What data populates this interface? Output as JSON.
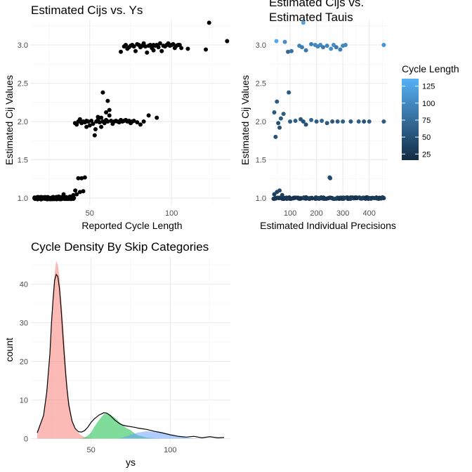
{
  "colors": {
    "grid_major": "#ebebeb",
    "grid_minor": "#f5f5f5",
    "point_black": "#000000",
    "density_line": "#000000",
    "fill_pink": "#f8766d",
    "fill_green": "#00ba38",
    "fill_blue": "#619cff",
    "gradient_low": "#132b43",
    "gradient_high": "#56b1f7"
  },
  "chart_data": [
    {
      "type": "scatter",
      "title": "Estimated Cijs vs. Ys",
      "xlabel": "Reported Cycle Length",
      "ylabel": "Estimated Cij Values",
      "xlim": [
        14,
        136
      ],
      "ylim": [
        0.9,
        3.33
      ],
      "xticks": [
        50,
        100
      ],
      "xtick_labels": [
        "50",
        "100"
      ],
      "yticks": [
        1.0,
        1.5,
        2.0,
        2.5,
        3.0
      ],
      "ytick_labels": [
        "1.0",
        "1.5",
        "2.0",
        "2.5",
        "3.0"
      ],
      "grid": true,
      "clusters": [
        {
          "x_range": [
            16,
            41
          ],
          "y": 1.0,
          "spread": 0.015,
          "n": 120
        },
        {
          "x_range": [
            41,
            42
          ],
          "y": 1.1,
          "spread": 0.0,
          "n": 1
        }
      ],
      "points": [
        [
          38.0,
          1.02
        ],
        [
          40.0,
          1.04
        ],
        [
          42.0,
          1.05
        ],
        [
          44.0,
          1.08
        ],
        [
          46.0,
          1.09
        ],
        [
          47.0,
          1.27
        ],
        [
          45.0,
          1.26
        ],
        [
          43.0,
          1.26
        ],
        [
          31.0,
          1.02
        ],
        [
          34.0,
          1.05
        ],
        [
          41.0,
          1.98
        ],
        [
          42.0,
          1.96
        ],
        [
          43.0,
          2.0
        ],
        [
          44.0,
          2.03
        ],
        [
          45.0,
          1.98
        ],
        [
          46.0,
          2.0
        ],
        [
          47.0,
          1.99
        ],
        [
          48.0,
          2.01
        ],
        [
          49.0,
          2.0
        ],
        [
          50.0,
          1.95
        ],
        [
          51.0,
          2.01
        ],
        [
          52.0,
          1.97
        ],
        [
          53.0,
          1.82
        ],
        [
          53.5,
          1.9
        ],
        [
          54.0,
          2.0
        ],
        [
          55.0,
          2.02
        ],
        [
          56.0,
          1.99
        ],
        [
          57.0,
          2.05
        ],
        [
          58.0,
          2.0
        ],
        [
          59.0,
          1.98
        ],
        [
          60.0,
          2.02
        ],
        [
          61.0,
          2.0
        ],
        [
          62.0,
          2.08
        ],
        [
          63.0,
          2.01
        ],
        [
          64.0,
          1.97
        ],
        [
          65.0,
          2.0
        ],
        [
          66.0,
          2.01
        ],
        [
          67.0,
          2.0
        ],
        [
          68.0,
          1.99
        ],
        [
          69.0,
          2.02
        ],
        [
          70.0,
          2.0
        ],
        [
          71.0,
          2.01
        ],
        [
          72.0,
          2.02
        ],
        [
          73.0,
          2.0
        ],
        [
          74.0,
          2.01
        ],
        [
          75.0,
          1.98
        ],
        [
          76.0,
          2.0
        ],
        [
          77.0,
          2.01
        ],
        [
          79.0,
          1.99
        ],
        [
          81.0,
          1.96
        ],
        [
          83.0,
          2.0
        ],
        [
          86.0,
          2.08
        ],
        [
          91.0,
          2.05
        ],
        [
          58.0,
          2.38
        ],
        [
          61.0,
          2.27
        ],
        [
          62.0,
          2.15
        ],
        [
          60.0,
          2.12
        ],
        [
          55.0,
          2.06
        ],
        [
          57.0,
          1.93
        ],
        [
          48.0,
          1.93
        ],
        [
          69.0,
          2.91
        ],
        [
          71.0,
          2.98
        ],
        [
          72.0,
          3.0
        ],
        [
          73.0,
          2.95
        ],
        [
          74.0,
          2.97
        ],
        [
          75.0,
          2.99
        ],
        [
          76.0,
          3.0
        ],
        [
          77.0,
          2.98
        ],
        [
          78.0,
          2.92
        ],
        [
          79.0,
          3.01
        ],
        [
          80.0,
          3.0
        ],
        [
          81.0,
          2.97
        ],
        [
          82.0,
          2.99
        ],
        [
          83.0,
          3.02
        ],
        [
          84.0,
          2.98
        ],
        [
          85.0,
          2.9
        ],
        [
          86.0,
          2.99
        ],
        [
          87.0,
          3.0
        ],
        [
          88.0,
          2.96
        ],
        [
          89.0,
          2.93
        ],
        [
          90.0,
          2.99
        ],
        [
          91.0,
          3.0
        ],
        [
          92.0,
          2.97
        ],
        [
          93.0,
          3.02
        ],
        [
          94.0,
          2.92
        ],
        [
          95.0,
          2.99
        ],
        [
          96.0,
          2.98
        ],
        [
          97.0,
          3.0
        ],
        [
          98.0,
          3.02
        ],
        [
          99.0,
          2.99
        ],
        [
          100.0,
          3.0
        ],
        [
          101.0,
          3.01
        ],
        [
          102.0,
          2.96
        ],
        [
          103.0,
          2.99
        ],
        [
          104.0,
          3.0
        ],
        [
          105.0,
          3.0
        ],
        [
          106.0,
          2.96
        ],
        [
          110.0,
          2.95
        ],
        [
          121.0,
          2.94
        ],
        [
          123.0,
          3.29
        ],
        [
          134.0,
          3.05
        ],
        [
          89.0,
          3.0
        ]
      ]
    },
    {
      "type": "scatter",
      "title": "Estimated Cijs vs.\nEstimated Tauis",
      "title_lines": [
        "Estimated Cijs vs.",
        "Estimated Tauis"
      ],
      "xlabel": "Estimated Individual Precisions",
      "ylabel": "Estimated Cij Values",
      "xlim": [
        20,
        470
      ],
      "ylim": [
        0.9,
        3.33
      ],
      "xticks": [
        100,
        200,
        300,
        400
      ],
      "xtick_labels": [
        "100",
        "200",
        "300",
        "400"
      ],
      "yticks": [
        1.0,
        1.5,
        2.0,
        2.5,
        3.0
      ],
      "ytick_labels": [
        "1.0",
        "1.5",
        "2.0",
        "2.5",
        "3.0"
      ],
      "grid": true,
      "legend": {
        "title": "Cycle Length",
        "placement": "right",
        "ticks": [
          25,
          50,
          75,
          100,
          125
        ],
        "tick_labels": [
          "25",
          "50",
          "75",
          "100",
          "125"
        ],
        "range": [
          16,
          136
        ]
      },
      "points": [
        [
          48,
          3.05,
          130
        ],
        [
          80,
          3.04,
          105
        ],
        [
          150,
          3.29,
          123
        ],
        [
          92,
          2.91,
          69
        ],
        [
          105,
          2.92,
          78
        ],
        [
          135,
          2.99,
          95
        ],
        [
          145,
          2.97,
          90
        ],
        [
          160,
          2.93,
          85
        ],
        [
          180,
          3.01,
          92
        ],
        [
          195,
          3.0,
          100
        ],
        [
          205,
          2.98,
          97
        ],
        [
          215,
          3.0,
          101
        ],
        [
          225,
          2.97,
          88
        ],
        [
          240,
          2.99,
          96
        ],
        [
          255,
          2.95,
          105
        ],
        [
          265,
          3.0,
          102
        ],
        [
          275,
          2.97,
          87
        ],
        [
          290,
          2.94,
          91
        ],
        [
          300,
          2.99,
          98
        ],
        [
          310,
          3.0,
          99
        ],
        [
          455,
          3.0,
          110
        ],
        [
          40,
          2.12,
          55
        ],
        [
          45,
          1.8,
          53
        ],
        [
          50,
          2.26,
          60
        ],
        [
          55,
          1.98,
          48
        ],
        [
          60,
          1.92,
          52
        ],
        [
          65,
          2.04,
          58
        ],
        [
          75,
          2.1,
          62
        ],
        [
          95,
          2.38,
          58
        ],
        [
          100,
          2.0,
          60
        ],
        [
          120,
          2.01,
          65
        ],
        [
          140,
          2.03,
          55
        ],
        [
          150,
          2.0,
          50
        ],
        [
          160,
          1.96,
          52
        ],
        [
          180,
          2.02,
          70
        ],
        [
          200,
          2.0,
          62
        ],
        [
          220,
          2.01,
          66
        ],
        [
          240,
          1.98,
          58
        ],
        [
          260,
          2.0,
          55
        ],
        [
          280,
          2.0,
          60
        ],
        [
          300,
          2.0,
          63
        ],
        [
          330,
          2.0,
          57
        ],
        [
          360,
          2.0,
          64
        ],
        [
          380,
          2.0,
          52
        ],
        [
          400,
          2.0,
          61
        ],
        [
          455,
          2.0,
          59
        ],
        [
          40,
          1.05,
          32
        ],
        [
          50,
          1.08,
          40
        ],
        [
          60,
          1.1,
          44
        ],
        [
          70,
          1.04,
          35
        ],
        [
          80,
          1.0,
          28
        ],
        [
          250,
          1.27,
          46
        ],
        [
          252,
          1.26,
          45
        ],
        [
          455,
          1.0,
          30
        ],
        [
          440,
          1.0,
          27
        ],
        [
          420,
          1.0,
          29
        ]
      ],
      "low_band": {
        "x_range": [
          35,
          460
        ],
        "y": 1.0,
        "spread": 0.01,
        "n": 160,
        "color_value": 28
      }
    },
    {
      "type": "area",
      "title": "Cycle Density By Skip Categories",
      "xlabel": "ys",
      "ylabel": "count",
      "xlim": [
        12,
        138
      ],
      "ylim": [
        -1,
        47
      ],
      "xticks": [
        50,
        100
      ],
      "xtick_labels": [
        "50",
        "100"
      ],
      "yticks": [
        0,
        10,
        20,
        30,
        40
      ],
      "ytick_labels": [
        "0",
        "10",
        "20",
        "30",
        "40"
      ],
      "grid": true,
      "x": [
        16,
        20,
        22,
        24,
        25,
        26,
        27,
        28,
        29,
        30,
        31,
        32,
        33,
        34,
        35,
        36,
        38,
        40,
        42,
        44,
        46,
        48,
        50,
        52,
        55,
        58,
        60,
        62,
        65,
        68,
        70,
        72,
        75,
        78,
        80,
        85,
        90,
        95,
        100,
        105,
        110,
        115,
        120,
        125,
        130,
        134
      ],
      "series": [
        {
          "values": [
            1.5,
            6,
            12,
            22,
            30,
            38,
            43,
            46,
            45,
            42,
            37,
            32,
            26,
            20,
            14,
            10,
            5,
            2.5,
            1.5,
            0.8,
            0.4,
            0.2,
            0.1,
            0.05,
            0,
            0,
            0,
            0,
            0,
            0,
            0,
            0,
            0,
            0,
            0,
            0,
            0,
            0,
            0,
            0,
            0,
            0,
            0,
            0,
            0,
            0
          ]
        },
        {
          "values": [
            0,
            0,
            0,
            0,
            0,
            0,
            0,
            0,
            0,
            0,
            0,
            0,
            0,
            0,
            0,
            0,
            0,
            0,
            0,
            0.1,
            0.3,
            0.8,
            1.6,
            3,
            4.8,
            6.3,
            6.6,
            6.3,
            5.4,
            4.2,
            3.5,
            2.8,
            2.2,
            1.2,
            0.8,
            0.3,
            0.1,
            0,
            0,
            0,
            0,
            0,
            0,
            0,
            0,
            0
          ]
        },
        {
          "values": [
            0,
            0,
            0,
            0,
            0,
            0,
            0,
            0,
            0,
            0,
            0,
            0,
            0,
            0,
            0,
            0,
            0,
            0,
            0,
            0,
            0,
            0,
            0,
            0,
            0,
            0,
            0,
            0,
            0,
            0.1,
            0.3,
            0.6,
            1.0,
            1.4,
            1.6,
            1.9,
            1.8,
            1.5,
            1.0,
            0.6,
            0.3,
            0.1,
            0,
            0,
            0,
            0
          ]
        }
      ],
      "overall_density": [
        1.5,
        6,
        12,
        22,
        30,
        36,
        41,
        42.5,
        42,
        39,
        34,
        28,
        22,
        16.5,
        12,
        8.5,
        4.5,
        2.6,
        1.8,
        1.7,
        2.1,
        3,
        4.2,
        5.1,
        6.1,
        6.7,
        6.6,
        6.0,
        4.8,
        3.9,
        3.5,
        3.3,
        3.1,
        2.9,
        2.7,
        2.4,
        1.9,
        1.5,
        1.0,
        0.6,
        0.4,
        0.6,
        0.2,
        0.5,
        0.2,
        0.3
      ]
    }
  ]
}
